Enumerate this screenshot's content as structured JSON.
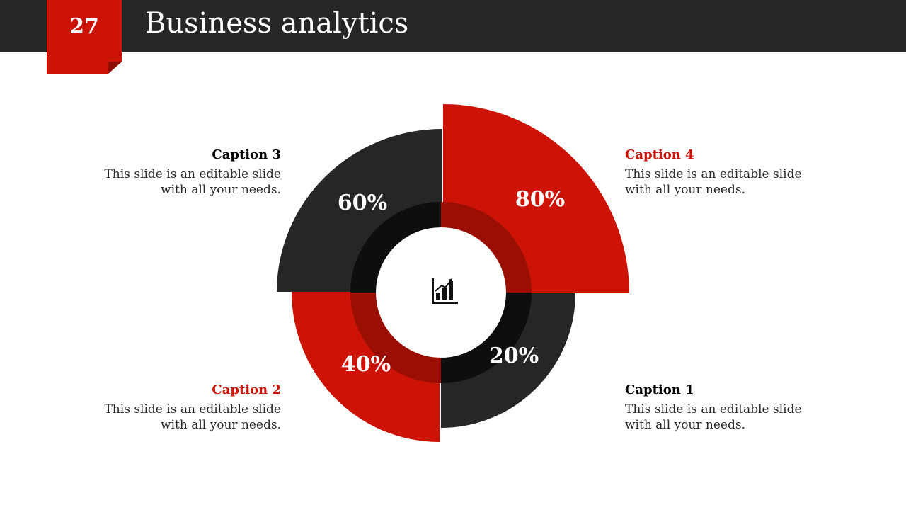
{
  "slide": {
    "number": "27",
    "title": "Business analytics"
  },
  "colors": {
    "accent_red": "#cc1305",
    "dark": "#262626",
    "inner_red": "#9b0f03",
    "inner_dark": "#0e0e0e"
  },
  "center_icon": "bar-chart-growth-icon",
  "segments": [
    {
      "label": "80%",
      "color": "accent_red"
    },
    {
      "label": "20%",
      "color": "dark"
    },
    {
      "label": "40%",
      "color": "accent_red"
    },
    {
      "label": "60%",
      "color": "dark"
    }
  ],
  "captions": [
    {
      "title": "Caption 3",
      "body": "This slide is an editable slide with all your needs.",
      "title_color": "#000000"
    },
    {
      "title": "Caption 4",
      "body": "This slide is an editable slide with all your needs.",
      "title_color": "#cc1305"
    },
    {
      "title": "Caption 2",
      "body": "This slide is an editable slide with all your needs.",
      "title_color": "#cc1305"
    },
    {
      "title": "Caption 1",
      "body": "This slide is an editable slide with all your needs.",
      "title_color": "#000000"
    }
  ]
}
